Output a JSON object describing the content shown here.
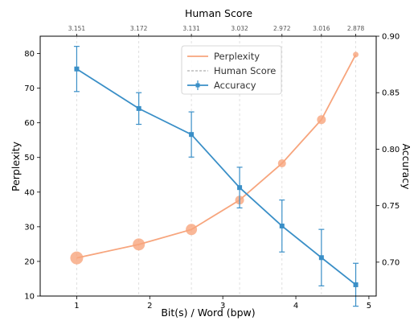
{
  "chart_data": {
    "type": "line",
    "title": "Human Score",
    "xlabel": "Bit(s) / Word (bpw)",
    "ylabel_left": "Perplexity",
    "ylabel_right": "Accuracy",
    "xlim": [
      0.5,
      5.1
    ],
    "ylim_left": [
      10,
      85
    ],
    "ylim_right": [
      0.67,
      0.9
    ],
    "x_ticks": [
      1,
      2,
      3,
      4,
      5
    ],
    "y_left_ticks": [
      10,
      20,
      30,
      40,
      50,
      60,
      70,
      80
    ],
    "y_right_ticks": [
      0.7,
      0.75,
      0.8,
      0.85,
      0.9
    ],
    "legend_position": "top-center",
    "grid": "vertical dashed at human score points",
    "human_score": {
      "name": "Human Score",
      "x": [
        1.0,
        1.85,
        2.57,
        3.23,
        3.81,
        4.35,
        4.82
      ],
      "values": [
        "3.151",
        "3.172",
        "3.131",
        "3.032",
        "2.972",
        "3.016",
        "2.878"
      ]
    },
    "series": [
      {
        "name": "Perplexity",
        "axis": "left",
        "color": "#f7a57d",
        "x": [
          1.0,
          1.85,
          2.57,
          3.23,
          3.81,
          4.35,
          4.82
        ],
        "y": [
          21.0,
          24.9,
          29.2,
          37.7,
          48.3,
          60.9,
          79.7
        ],
        "marker_size": [
          8,
          7.5,
          7,
          5.5,
          5,
          5.5,
          3.5
        ]
      },
      {
        "name": "Accuracy",
        "axis": "right",
        "color": "#3a8fc7",
        "x": [
          1.0,
          1.85,
          2.57,
          3.23,
          3.81,
          4.35,
          4.82
        ],
        "y": [
          0.871,
          0.836,
          0.813,
          0.766,
          0.732,
          0.704,
          0.68
        ],
        "err": [
          0.02,
          0.014,
          0.02,
          0.018,
          0.023,
          0.025,
          0.019
        ]
      }
    ]
  }
}
